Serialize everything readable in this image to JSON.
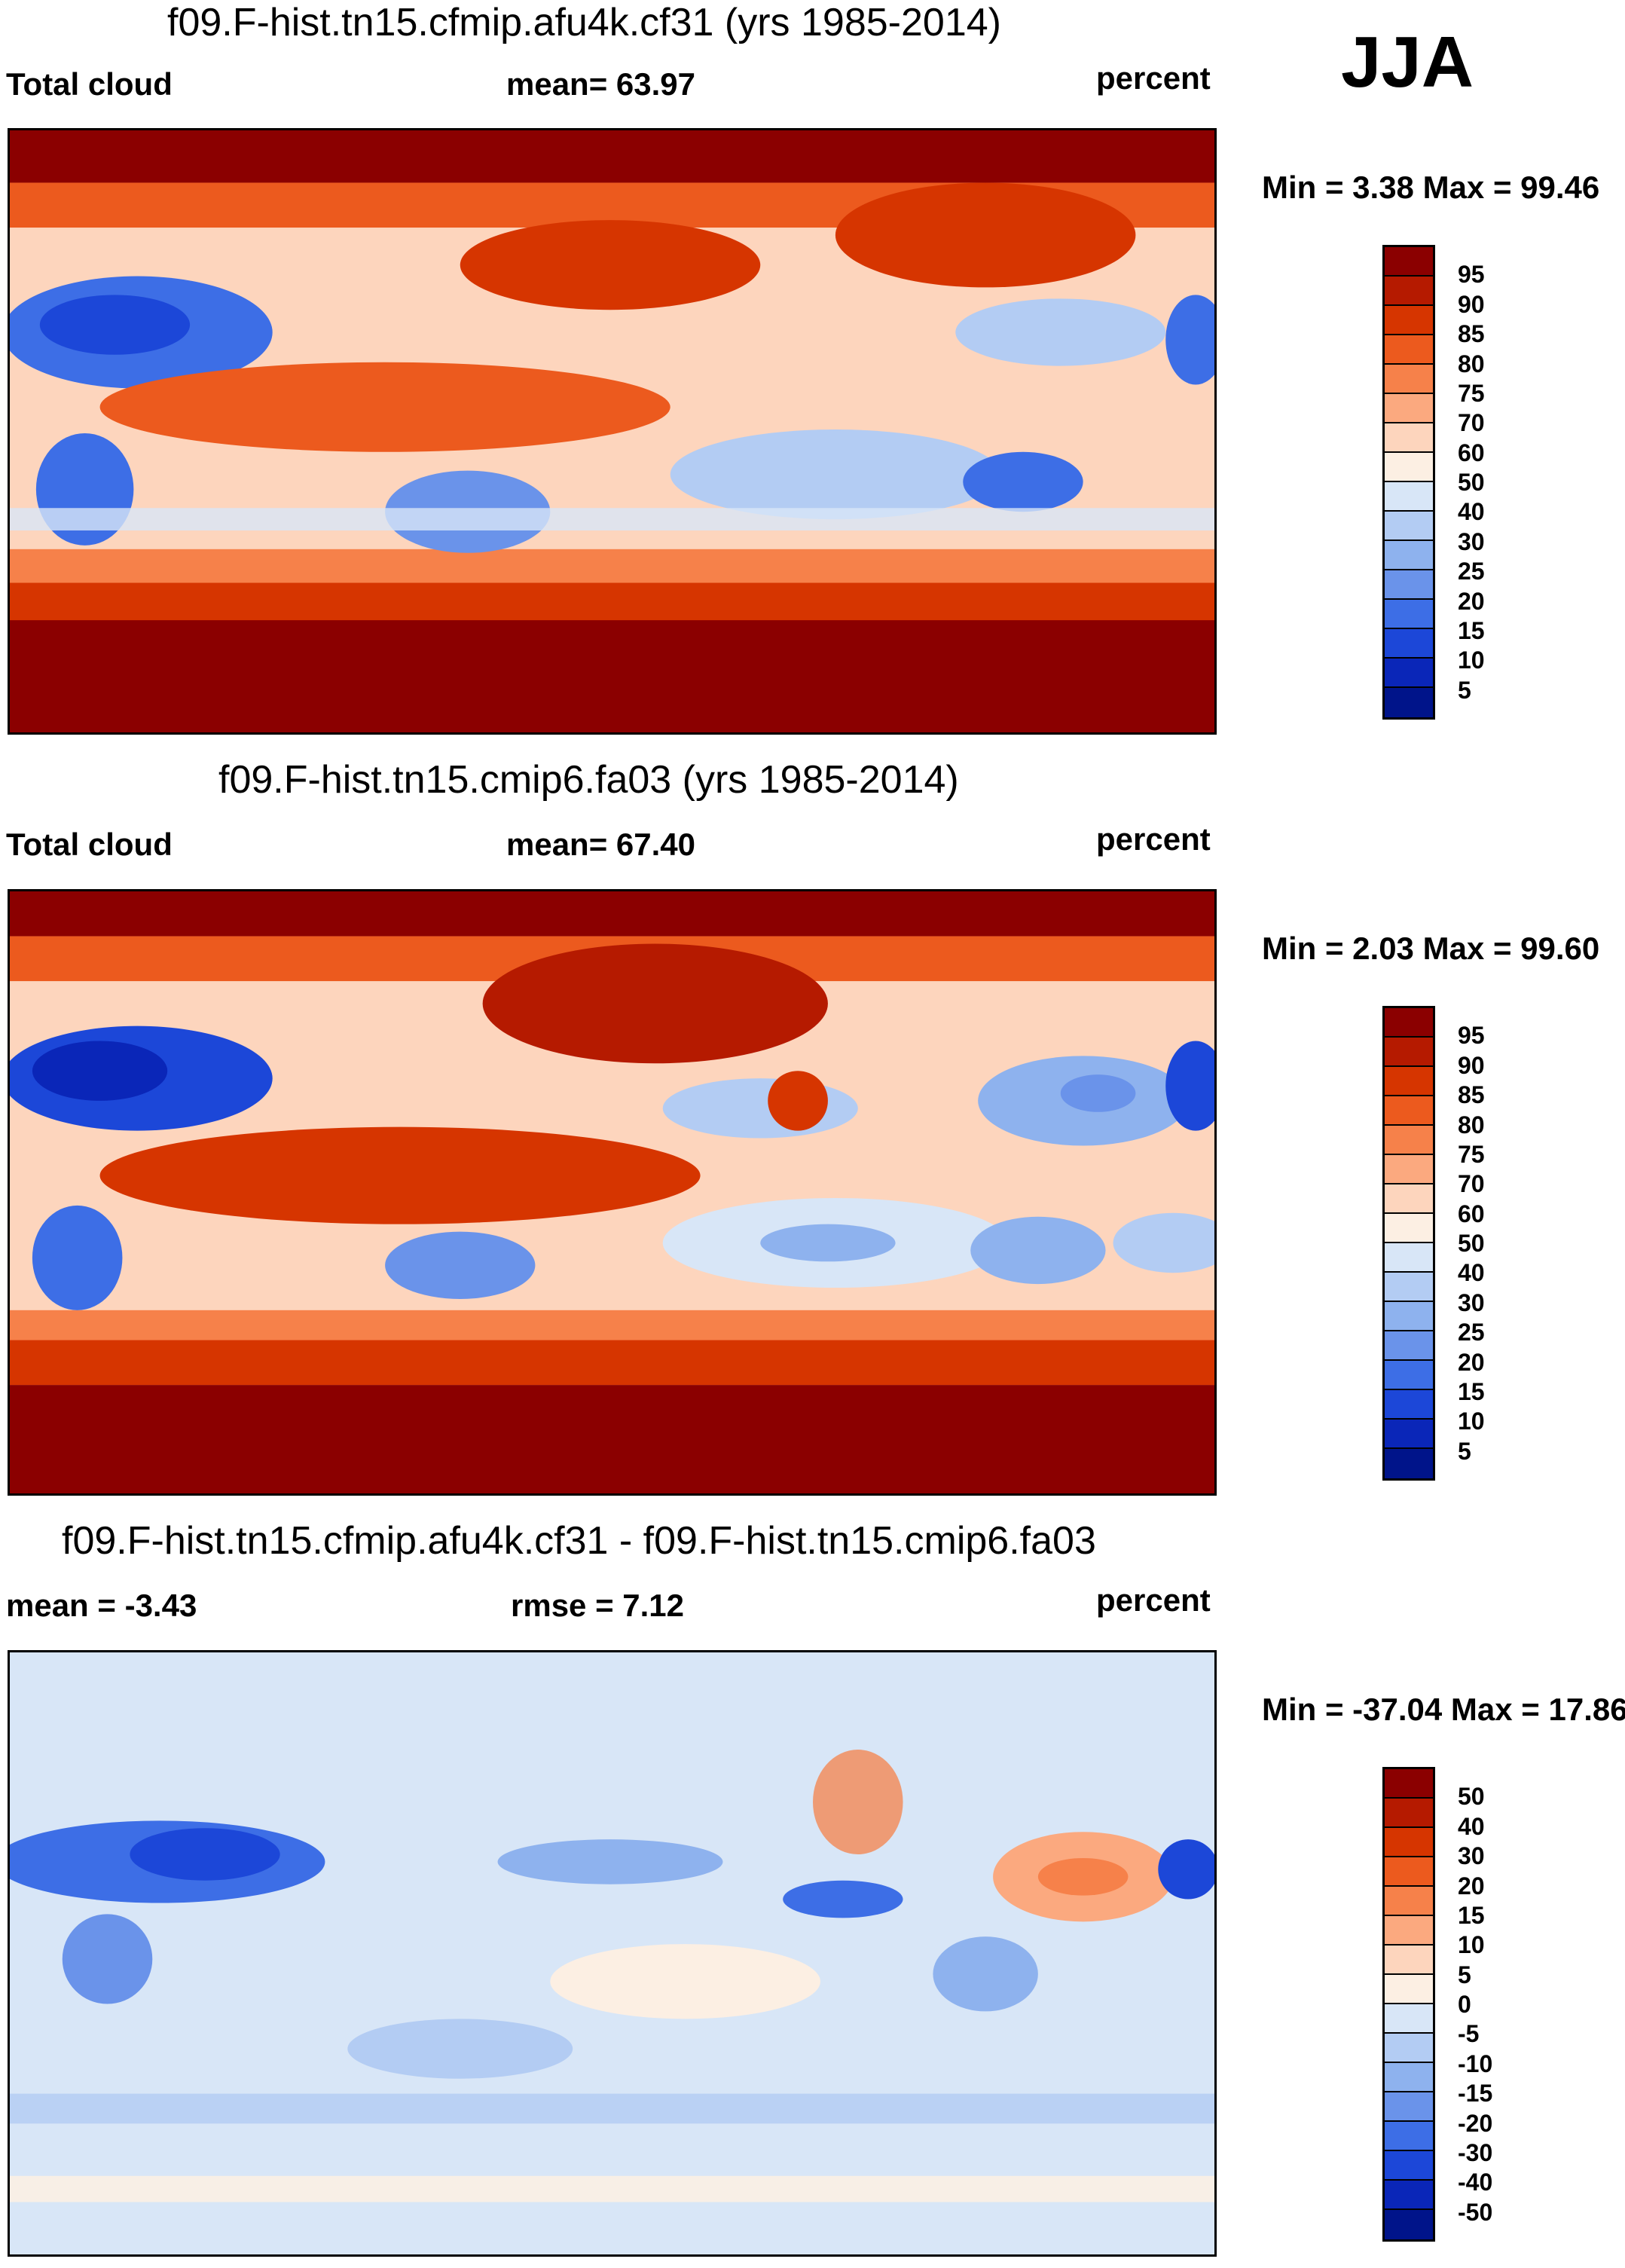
{
  "season": "JJA",
  "panels": [
    {
      "title": "f09.F-hist.tn15.cfmip.afu4k.cf31 (yrs 1985-2014)",
      "left_label": "Total cloud",
      "center_label": "mean=  63.97",
      "right_label": "percent",
      "minmax": "Min =   3.38 Max =  99.46",
      "colorbar_ticks": [
        "95",
        "90",
        "85",
        "80",
        "75",
        "70",
        "60",
        "50",
        "40",
        "30",
        "25",
        "20",
        "15",
        "10",
        "5"
      ]
    },
    {
      "title": "f09.F-hist.tn15.cmip6.fa03 (yrs 1985-2014)",
      "left_label": "Total cloud",
      "center_label": "mean=  67.40",
      "right_label": "percent",
      "minmax": "Min =   2.03 Max =  99.60",
      "colorbar_ticks": [
        "95",
        "90",
        "85",
        "80",
        "75",
        "70",
        "60",
        "50",
        "40",
        "30",
        "25",
        "20",
        "15",
        "10",
        "5"
      ]
    },
    {
      "title": "f09.F-hist.tn15.cfmip.afu4k.cf31 - f09.F-hist.tn15.cmip6.fa03",
      "left_label": "mean =  -3.43",
      "center_label": "rmse =    7.12",
      "right_label": "percent",
      "minmax": "Min = -37.04 Max =  17.86",
      "colorbar_ticks": [
        "50",
        "40",
        "30",
        "20",
        "15",
        "10",
        "5",
        "0",
        "-5",
        "-10",
        "-15",
        "-20",
        "-30",
        "-40",
        "-50"
      ]
    }
  ],
  "colors": {
    "abs_scale": [
      "#8b0000",
      "#b51a00",
      "#d63500",
      "#ec5a1e",
      "#f6814a",
      "#fba97f",
      "#fdd5bd",
      "#fcefe3",
      "#d8e6f7",
      "#b3ccf3",
      "#8eb2ee",
      "#6a93ea",
      "#3d6ee6",
      "#1c47d8",
      "#0a26b8",
      "#00148a"
    ],
    "diff_scale": [
      "#8b0000",
      "#b51a00",
      "#d63500",
      "#ec5a1e",
      "#f6814a",
      "#fba97f",
      "#fdd5bd",
      "#fcefe3",
      "#d8e6f7",
      "#b3ccf3",
      "#8eb2ee",
      "#6a93ea",
      "#3d6ee6",
      "#1c47d8",
      "#0a26b8",
      "#00148a"
    ]
  },
  "chart_data": {
    "type": "heatmap",
    "variable": "Total cloud",
    "units": "percent",
    "season": "JJA",
    "maps": [
      {
        "name": "f09.F-hist.tn15.cfmip.afu4k.cf31",
        "years": "1985-2014",
        "mean": 63.97,
        "min": 3.38,
        "max": 99.46,
        "levels": [
          5,
          10,
          15,
          20,
          25,
          30,
          40,
          50,
          60,
          70,
          75,
          80,
          85,
          90,
          95
        ]
      },
      {
        "name": "f09.F-hist.tn15.cmip6.fa03",
        "years": "1985-2014",
        "mean": 67.4,
        "min": 2.03,
        "max": 99.6,
        "levels": [
          5,
          10,
          15,
          20,
          25,
          30,
          40,
          50,
          60,
          70,
          75,
          80,
          85,
          90,
          95
        ]
      },
      {
        "name": "f09.F-hist.tn15.cfmip.afu4k.cf31 - f09.F-hist.tn15.cmip6.fa03",
        "mean": -3.43,
        "rmse": 7.12,
        "min": -37.04,
        "max": 17.86,
        "levels": [
          -50,
          -40,
          -30,
          -20,
          -15,
          -10,
          -5,
          0,
          5,
          10,
          15,
          20,
          30,
          40,
          50
        ]
      }
    ]
  }
}
